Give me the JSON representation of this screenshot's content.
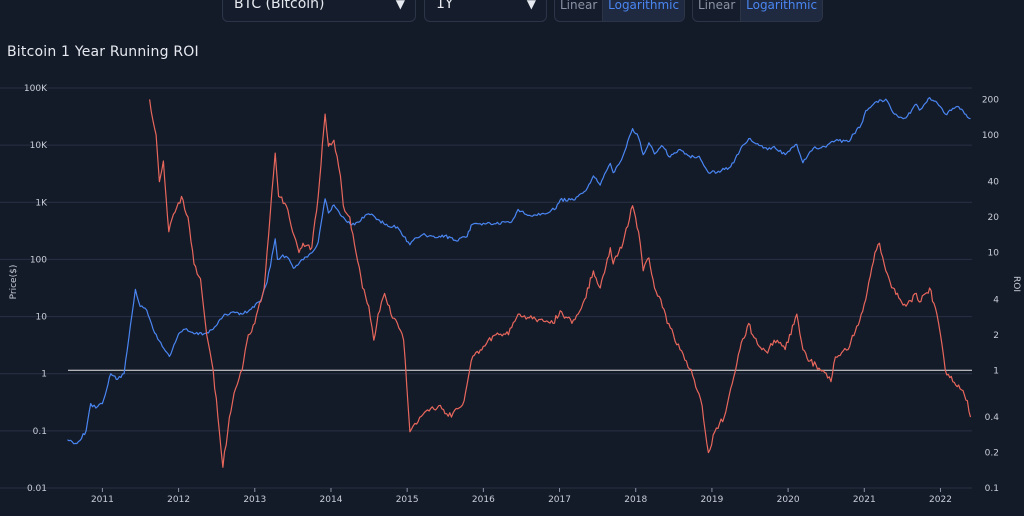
{
  "controls": {
    "asset_select": {
      "value": "BTC (Bitcoin)"
    },
    "period_select": {
      "value": "1Y"
    },
    "price_scale": {
      "options": [
        "Linear",
        "Logarithmic"
      ],
      "selected": "Logarithmic"
    },
    "roi_scale": {
      "options": [
        "Linear",
        "Logarithmic"
      ],
      "selected": "Logarithmic"
    }
  },
  "colors": {
    "background": "#131a28",
    "price_line": "#4a86f2",
    "roi_line": "#e8675c",
    "reference_line": "#e6e6e6",
    "grid": "#2a3245"
  },
  "chart_data": {
    "type": "line",
    "title": "Bitcoin 1 Year Running ROI",
    "xlabel": "",
    "x_ticks": [
      "2011",
      "2012",
      "2013",
      "2014",
      "2015",
      "2016",
      "2017",
      "2018",
      "2019",
      "2020",
      "2021",
      "2022"
    ],
    "xlim": [
      "2010-07",
      "2022-06"
    ],
    "left_axis": {
      "label": "Price($)",
      "scale": "log",
      "range": [
        0.01,
        100000
      ],
      "ticks": [
        "0.01",
        "0.1",
        "1",
        "10",
        "100",
        "1K",
        "10K",
        "100K"
      ],
      "tick_values": [
        0.01,
        0.1,
        1,
        10,
        100,
        1000,
        10000,
        100000
      ]
    },
    "right_axis": {
      "label": "ROI",
      "scale": "log",
      "range": [
        0.1,
        250
      ],
      "ticks": [
        "0.1",
        "0.2",
        "0.4",
        "1",
        "2",
        "4",
        "10",
        "20",
        "40",
        "100",
        "200"
      ],
      "tick_values": [
        0.1,
        0.2,
        0.4,
        1,
        2,
        4,
        10,
        20,
        40,
        100,
        200
      ]
    },
    "reference_line": {
      "axis": "right",
      "value": 1
    },
    "grid": true,
    "legend": "none",
    "series": [
      {
        "axis": "left",
        "color": "#4a86f2",
        "points": [
          [
            "2010-07-18",
            0.07
          ],
          [
            "2010-09-01",
            0.06
          ],
          [
            "2010-10-15",
            0.1
          ],
          [
            "2010-11-06",
            0.3
          ],
          [
            "2010-12-01",
            0.25
          ],
          [
            "2011-01-01",
            0.3
          ],
          [
            "2011-02-10",
            1
          ],
          [
            "2011-03-15",
            0.8
          ],
          [
            "2011-04-15",
            1
          ],
          [
            "2011-05-15",
            7
          ],
          [
            "2011-06-08",
            30
          ],
          [
            "2011-07-01",
            15
          ],
          [
            "2011-08-01",
            13
          ],
          [
            "2011-09-01",
            6
          ],
          [
            "2011-10-15",
            3
          ],
          [
            "2011-11-18",
            2
          ],
          [
            "2012-01-01",
            5
          ],
          [
            "2012-02-01",
            6
          ],
          [
            "2012-03-15",
            5
          ],
          [
            "2012-05-01",
            5
          ],
          [
            "2012-06-15",
            6
          ],
          [
            "2012-08-01",
            10
          ],
          [
            "2012-09-15",
            12
          ],
          [
            "2012-11-01",
            11
          ],
          [
            "2012-12-15",
            13.5
          ],
          [
            "2013-02-01",
            20
          ],
          [
            "2013-03-01",
            40
          ],
          [
            "2013-04-09",
            230
          ],
          [
            "2013-04-20",
            100
          ],
          [
            "2013-05-15",
            120
          ],
          [
            "2013-06-15",
            100
          ],
          [
            "2013-07-05",
            70
          ],
          [
            "2013-08-15",
            100
          ],
          [
            "2013-10-01",
            130
          ],
          [
            "2013-11-01",
            200
          ],
          [
            "2013-12-04",
            1150
          ],
          [
            "2013-12-20",
            650
          ],
          [
            "2014-01-15",
            900
          ],
          [
            "2014-02-15",
            600
          ],
          [
            "2014-03-01",
            550
          ],
          [
            "2014-04-10",
            400
          ],
          [
            "2014-05-15",
            450
          ],
          [
            "2014-06-15",
            600
          ],
          [
            "2014-07-15",
            620
          ],
          [
            "2014-08-15",
            500
          ],
          [
            "2014-10-01",
            380
          ],
          [
            "2014-11-15",
            370
          ],
          [
            "2015-01-14",
            180
          ],
          [
            "2015-02-15",
            240
          ],
          [
            "2015-03-15",
            270
          ],
          [
            "2015-05-15",
            240
          ],
          [
            "2015-07-01",
            260
          ],
          [
            "2015-08-25",
            210
          ],
          [
            "2015-10-15",
            250
          ],
          [
            "2015-11-04",
            400
          ],
          [
            "2016-01-01",
            430
          ],
          [
            "2016-03-01",
            420
          ],
          [
            "2016-05-15",
            450
          ],
          [
            "2016-06-16",
            750
          ],
          [
            "2016-08-01",
            590
          ],
          [
            "2016-10-15",
            640
          ],
          [
            "2016-12-15",
            780
          ],
          [
            "2017-01-04",
            1100
          ],
          [
            "2017-03-15",
            1100
          ],
          [
            "2017-05-15",
            1800
          ],
          [
            "2017-06-12",
            2900
          ],
          [
            "2017-07-15",
            2000
          ],
          [
            "2017-09-01",
            4800
          ],
          [
            "2017-09-15",
            3300
          ],
          [
            "2017-11-01",
            6500
          ],
          [
            "2017-12-17",
            19500
          ],
          [
            "2018-01-15",
            13500
          ],
          [
            "2018-02-06",
            6800
          ],
          [
            "2018-03-05",
            11000
          ],
          [
            "2018-04-01",
            7000
          ],
          [
            "2018-05-05",
            9800
          ],
          [
            "2018-06-15",
            6200
          ],
          [
            "2018-07-25",
            8300
          ],
          [
            "2018-09-15",
            6400
          ],
          [
            "2018-11-01",
            6400
          ],
          [
            "2018-12-15",
            3300
          ],
          [
            "2019-02-01",
            3500
          ],
          [
            "2019-04-01",
            4200
          ],
          [
            "2019-05-15",
            8000
          ],
          [
            "2019-06-26",
            13000
          ],
          [
            "2019-08-01",
            10500
          ],
          [
            "2019-09-25",
            8300
          ],
          [
            "2019-10-26",
            9500
          ],
          [
            "2019-12-18",
            6800
          ],
          [
            "2020-02-12",
            10300
          ],
          [
            "2020-03-12",
            4900
          ],
          [
            "2020-05-01",
            8800
          ],
          [
            "2020-07-01",
            9200
          ],
          [
            "2020-08-15",
            12000
          ],
          [
            "2020-10-15",
            11500
          ],
          [
            "2020-12-17",
            23000
          ],
          [
            "2021-01-08",
            40000
          ],
          [
            "2021-02-21",
            56000
          ],
          [
            "2021-04-14",
            64000
          ],
          [
            "2021-05-19",
            37000
          ],
          [
            "2021-06-22",
            31000
          ],
          [
            "2021-07-20",
            30000
          ],
          [
            "2021-09-07",
            52000
          ],
          [
            "2021-09-22",
            41000
          ],
          [
            "2021-11-10",
            68000
          ],
          [
            "2022-01-01",
            47000
          ],
          [
            "2022-01-24",
            35000
          ],
          [
            "2022-03-29",
            47000
          ],
          [
            "2022-05-10",
            31000
          ],
          [
            "2022-05-25",
            29000
          ]
        ]
      },
      {
        "axis": "right",
        "color": "#e8675c",
        "points": [
          [
            "2011-08-15",
            200
          ],
          [
            "2011-09-15",
            100
          ],
          [
            "2011-10-01",
            40
          ],
          [
            "2011-10-20",
            60
          ],
          [
            "2011-11-15",
            15
          ],
          [
            "2011-12-15",
            22
          ],
          [
            "2012-01-15",
            30
          ],
          [
            "2012-02-15",
            20
          ],
          [
            "2012-03-15",
            8
          ],
          [
            "2012-04-15",
            6
          ],
          [
            "2012-05-15",
            2
          ],
          [
            "2012-06-15",
            1
          ],
          [
            "2012-07-15",
            0.3
          ],
          [
            "2012-08-01",
            0.15
          ],
          [
            "2012-09-01",
            0.4
          ],
          [
            "2012-10-01",
            0.7
          ],
          [
            "2012-11-01",
            1
          ],
          [
            "2012-12-01",
            2
          ],
          [
            "2013-01-01",
            2.5
          ],
          [
            "2013-02-15",
            5
          ],
          [
            "2013-03-15",
            20
          ],
          [
            "2013-04-09",
            70
          ],
          [
            "2013-04-25",
            30
          ],
          [
            "2013-06-01",
            25
          ],
          [
            "2013-07-01",
            15
          ],
          [
            "2013-08-01",
            10
          ],
          [
            "2013-08-20",
            12
          ],
          [
            "2013-10-01",
            11
          ],
          [
            "2013-11-01",
            30
          ],
          [
            "2013-12-04",
            150
          ],
          [
            "2013-12-20",
            80
          ],
          [
            "2014-01-15",
            90
          ],
          [
            "2014-02-15",
            45
          ],
          [
            "2014-03-01",
            25
          ],
          [
            "2014-04-01",
            20
          ],
          [
            "2014-05-01",
            10
          ],
          [
            "2014-06-01",
            5
          ],
          [
            "2014-07-01",
            3.5
          ],
          [
            "2014-07-25",
            1.8
          ],
          [
            "2014-08-15",
            3
          ],
          [
            "2014-09-15",
            4.5
          ],
          [
            "2014-10-15",
            3
          ],
          [
            "2014-11-15",
            2.5
          ],
          [
            "2014-12-15",
            1.8
          ],
          [
            "2015-01-14",
            0.3
          ],
          [
            "2015-02-15",
            0.35
          ],
          [
            "2015-04-01",
            0.45
          ],
          [
            "2015-06-01",
            0.5
          ],
          [
            "2015-08-01",
            0.4
          ],
          [
            "2015-10-01",
            0.55
          ],
          [
            "2015-11-04",
            1.2
          ],
          [
            "2016-01-01",
            1.6
          ],
          [
            "2016-03-01",
            2
          ],
          [
            "2016-05-01",
            2
          ],
          [
            "2016-06-16",
            3
          ],
          [
            "2016-08-01",
            2.8
          ],
          [
            "2016-10-01",
            2.7
          ],
          [
            "2016-12-01",
            2.5
          ],
          [
            "2017-01-04",
            3.2
          ],
          [
            "2017-03-01",
            2.5
          ],
          [
            "2017-05-01",
            4
          ],
          [
            "2017-06-12",
            7
          ],
          [
            "2017-07-15",
            5
          ],
          [
            "2017-09-01",
            11
          ],
          [
            "2017-09-15",
            8
          ],
          [
            "2017-11-01",
            12
          ],
          [
            "2017-12-17",
            25
          ],
          [
            "2018-01-15",
            15
          ],
          [
            "2018-02-06",
            7
          ],
          [
            "2018-03-05",
            9
          ],
          [
            "2018-04-01",
            5
          ],
          [
            "2018-05-01",
            4
          ],
          [
            "2018-06-01",
            2.5
          ],
          [
            "2018-07-01",
            2
          ],
          [
            "2018-08-01",
            1.5
          ],
          [
            "2018-09-01",
            1.2
          ],
          [
            "2018-10-01",
            0.9
          ],
          [
            "2018-11-15",
            0.5
          ],
          [
            "2018-12-15",
            0.2
          ],
          [
            "2019-01-15",
            0.3
          ],
          [
            "2019-03-01",
            0.4
          ],
          [
            "2019-04-01",
            0.7
          ],
          [
            "2019-05-15",
            1.5
          ],
          [
            "2019-06-26",
            2.5
          ],
          [
            "2019-07-15",
            2
          ],
          [
            "2019-08-15",
            1.6
          ],
          [
            "2019-09-25",
            1.4
          ],
          [
            "2019-10-26",
            1.8
          ],
          [
            "2019-12-18",
            1.5
          ],
          [
            "2020-02-12",
            3
          ],
          [
            "2020-03-12",
            1.5
          ],
          [
            "2020-04-15",
            1.2
          ],
          [
            "2020-05-15",
            1.1
          ],
          [
            "2020-07-01",
            0.95
          ],
          [
            "2020-07-25",
            0.8
          ],
          [
            "2020-08-15",
            1.3
          ],
          [
            "2020-10-15",
            1.5
          ],
          [
            "2020-12-17",
            3
          ],
          [
            "2021-01-08",
            4
          ],
          [
            "2021-02-21",
            10
          ],
          [
            "2021-03-15",
            12
          ],
          [
            "2021-04-14",
            7
          ],
          [
            "2021-05-19",
            5
          ],
          [
            "2021-06-22",
            4
          ],
          [
            "2021-07-20",
            3.5
          ],
          [
            "2021-09-07",
            4.5
          ],
          [
            "2021-09-22",
            3.8
          ],
          [
            "2021-11-10",
            5
          ],
          [
            "2021-12-15",
            3
          ],
          [
            "2022-01-01",
            2
          ],
          [
            "2022-01-24",
            1
          ],
          [
            "2022-03-01",
            0.8
          ],
          [
            "2022-03-29",
            0.75
          ],
          [
            "2022-05-10",
            0.55
          ],
          [
            "2022-05-25",
            0.4
          ]
        ]
      }
    ]
  }
}
